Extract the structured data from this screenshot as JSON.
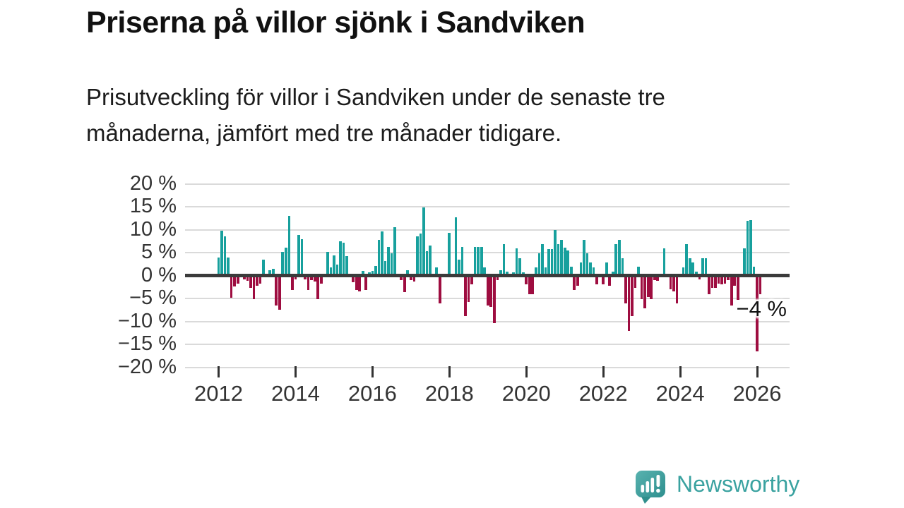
{
  "header": {
    "title": "Priserna på villor sjönk i Sandviken",
    "subtitle": "Prisutveckling för villor i Sandviken under de senaste tre\nmånaderna, jämfört med tre månader tidigare."
  },
  "branding": {
    "name": "Newsworthy",
    "logo_icon": "speech-bubble-with-bar-chart-and-exclamation",
    "color": "#3aa2a0"
  },
  "colors": {
    "positive_bar": "#17a09d",
    "negative_bar": "#9e0d40",
    "gridline": "#dadada",
    "zero_line": "#3b3b3b",
    "axis_text": "#333333",
    "title_text": "#111111"
  },
  "chart_data": {
    "type": "bar",
    "title": "Priserna på villor sjönk i Sandviken",
    "xlabel": "",
    "ylabel": "",
    "unit": "%",
    "frequency": "monthly",
    "start": "2012-01",
    "end": "2026-02",
    "ylim": [
      -20,
      20
    ],
    "grid": "horizontal",
    "ytick_values": [
      20,
      15,
      10,
      5,
      0,
      -5,
      -10,
      -15,
      -20
    ],
    "ytick_labels": [
      "20 %",
      "15 %",
      "10 %",
      "5 %",
      "0 %",
      "−5 %",
      "−10 %",
      "−15 %",
      "−20 %"
    ],
    "xtick_years": [
      2012,
      2014,
      2016,
      2018,
      2020,
      2022,
      2024,
      2026
    ],
    "xtick_labels": [
      "2012",
      "2014",
      "2016",
      "2018",
      "2020",
      "2022",
      "2024",
      "2026"
    ],
    "annotation_label": "−4 %",
    "annotation_value": -4,
    "values": [
      4,
      9.7,
      8.6,
      4,
      -4.9,
      -2.4,
      -1.8,
      0,
      -0.9,
      -1.2,
      -2.7,
      -5.2,
      -2.2,
      -1.7,
      3.5,
      0,
      1.1,
      1.5,
      -6.5,
      -7.4,
      5.2,
      6.1,
      13,
      -3.2,
      -0.9,
      8.9,
      7.9,
      -0.9,
      -3.1,
      -1,
      -1.3,
      -5.2,
      -1.7,
      0,
      5.2,
      1.7,
      4.4,
      2.4,
      7.4,
      7.2,
      4.3,
      0,
      -1.5,
      -3.2,
      -3.4,
      1,
      -3.1,
      0.7,
      1,
      2.1,
      7.8,
      9.6,
      3.2,
      6.3,
      4.9,
      10.6,
      0.3,
      -1,
      -3.6,
      1.1,
      -1,
      -1.3,
      8.5,
      9.2,
      14.8,
      5.3,
      6.5,
      0,
      1.7,
      -6.1,
      0,
      0,
      9.3,
      0,
      12.7,
      3.4,
      6.2,
      -8.8,
      -5.8,
      -1.9,
      6.3,
      6.3,
      6.3,
      1.7,
      -6.5,
      -6.8,
      -10.4,
      -1,
      1.1,
      6.8,
      0.9,
      0,
      0.7,
      6,
      3.7,
      0.7,
      -1.9,
      -4.1,
      -4.1,
      1.7,
      4.8,
      6.8,
      1.7,
      5.7,
      5.7,
      9.9,
      6.8,
      7.8,
      6.1,
      5.5,
      1.9,
      -3.2,
      -2.3,
      2.8,
      7.8,
      4.8,
      2.8,
      1.7,
      -1.9,
      0,
      -1.9,
      2.8,
      -2.2,
      0.9,
      6.8,
      7.8,
      3.8,
      -6.1,
      -12.1,
      -8.8,
      -2.7,
      1.9,
      -5.2,
      -7.1,
      -4.7,
      -5.2,
      -1,
      -1.2,
      0,
      5.9,
      0,
      -3,
      -3.4,
      -6.1,
      0,
      1.7,
      6.9,
      3.8,
      2.9,
      0.9,
      -0.9,
      3.7,
      3.8,
      -4.1,
      -2.7,
      -2.7,
      -1.7,
      -1.9,
      -1.7,
      -1,
      -6.5,
      -2.2,
      -5.3,
      0,
      6,
      11.9,
      12.1,
      1.9,
      -16.5,
      -4
    ]
  }
}
